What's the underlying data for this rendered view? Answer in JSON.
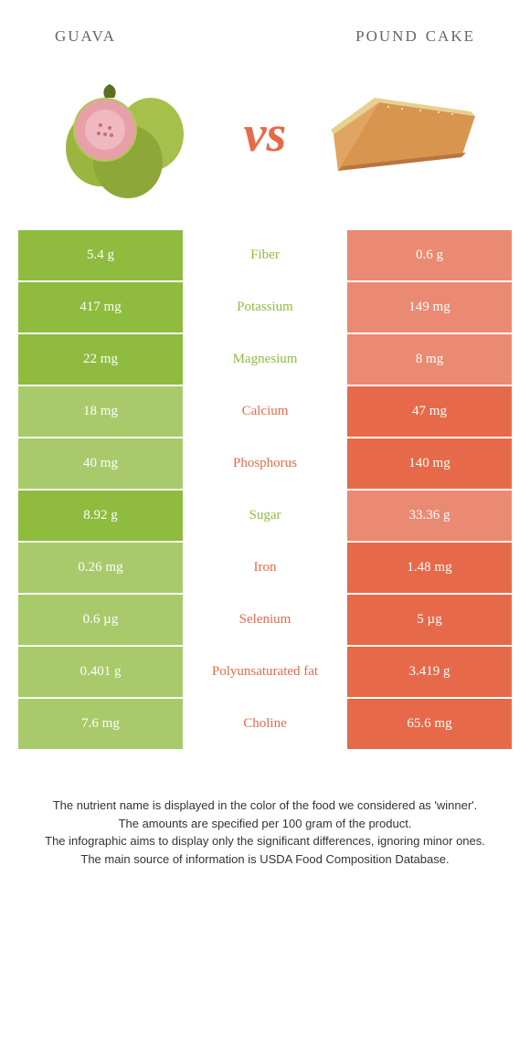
{
  "header": {
    "left_title": "guava",
    "right_title": "pound cake",
    "vs": "vs"
  },
  "colors": {
    "left_win": "#8fbb3f",
    "left_lose": "#a9ca6b",
    "right_win": "#e66a4a",
    "right_lose": "#ea8a72",
    "text_mid_left": "#8fbb3f",
    "text_mid_right": "#e66a4a"
  },
  "rows": [
    {
      "left": "5.4 g",
      "label": "Fiber",
      "right": "0.6 g",
      "winner": "left"
    },
    {
      "left": "417 mg",
      "label": "Potassium",
      "right": "149 mg",
      "winner": "left"
    },
    {
      "left": "22 mg",
      "label": "Magnesium",
      "right": "8 mg",
      "winner": "left"
    },
    {
      "left": "18 mg",
      "label": "Calcium",
      "right": "47 mg",
      "winner": "right"
    },
    {
      "left": "40 mg",
      "label": "Phosphorus",
      "right": "140 mg",
      "winner": "right"
    },
    {
      "left": "8.92 g",
      "label": "Sugar",
      "right": "33.36 g",
      "winner": "left"
    },
    {
      "left": "0.26 mg",
      "label": "Iron",
      "right": "1.48 mg",
      "winner": "right"
    },
    {
      "left": "0.6 µg",
      "label": "Selenium",
      "right": "5 µg",
      "winner": "right"
    },
    {
      "left": "0.401 g",
      "label": "Polyunsaturated fat",
      "right": "3.419 g",
      "winner": "right"
    },
    {
      "left": "7.6 mg",
      "label": "Choline",
      "right": "65.6 mg",
      "winner": "right"
    }
  ],
  "footer": {
    "line1": "The nutrient name is displayed in the color of the food we considered as 'winner'.",
    "line2": "The amounts are specified per 100 gram of the product.",
    "line3": "The infographic aims to display only the significant differences, ignoring minor ones.",
    "line4": "The main source of information is USDA Food Composition Database."
  }
}
